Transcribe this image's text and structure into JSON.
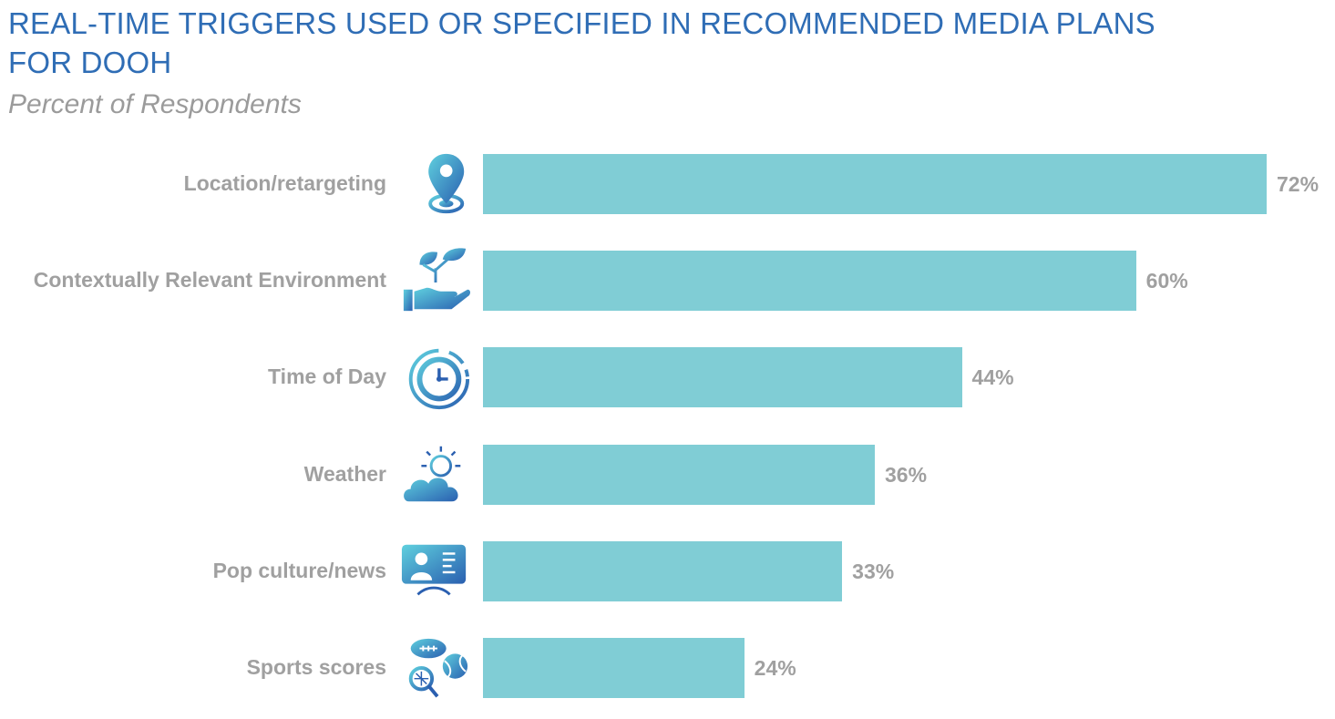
{
  "chart_data": {
    "type": "bar",
    "orientation": "horizontal",
    "title": "REAL-TIME TRIGGERS USED OR SPECIFIED IN RECOMMENDED MEDIA PLANS FOR DOOH",
    "subtitle": "Percent of Respondents",
    "categories": [
      "Location/retargeting",
      "Contextually Relevant Environment",
      "Time of Day",
      "Weather",
      "Pop culture/news",
      "Sports scores"
    ],
    "values": [
      72,
      60,
      44,
      36,
      33,
      24
    ],
    "value_labels": [
      "72%",
      "60%",
      "44%",
      "36%",
      "33%",
      "24%"
    ],
    "icons": [
      "location-pin-icon",
      "plant-hand-icon",
      "clock-icon",
      "weather-icon",
      "news-presenter-icon",
      "sports-balls-icon"
    ],
    "xlim": [
      0,
      72
    ],
    "bar_color": "#80cdd5",
    "title_color": "#2f6db5",
    "label_color": "#a0a0a0",
    "grid": false,
    "legend": "none"
  }
}
